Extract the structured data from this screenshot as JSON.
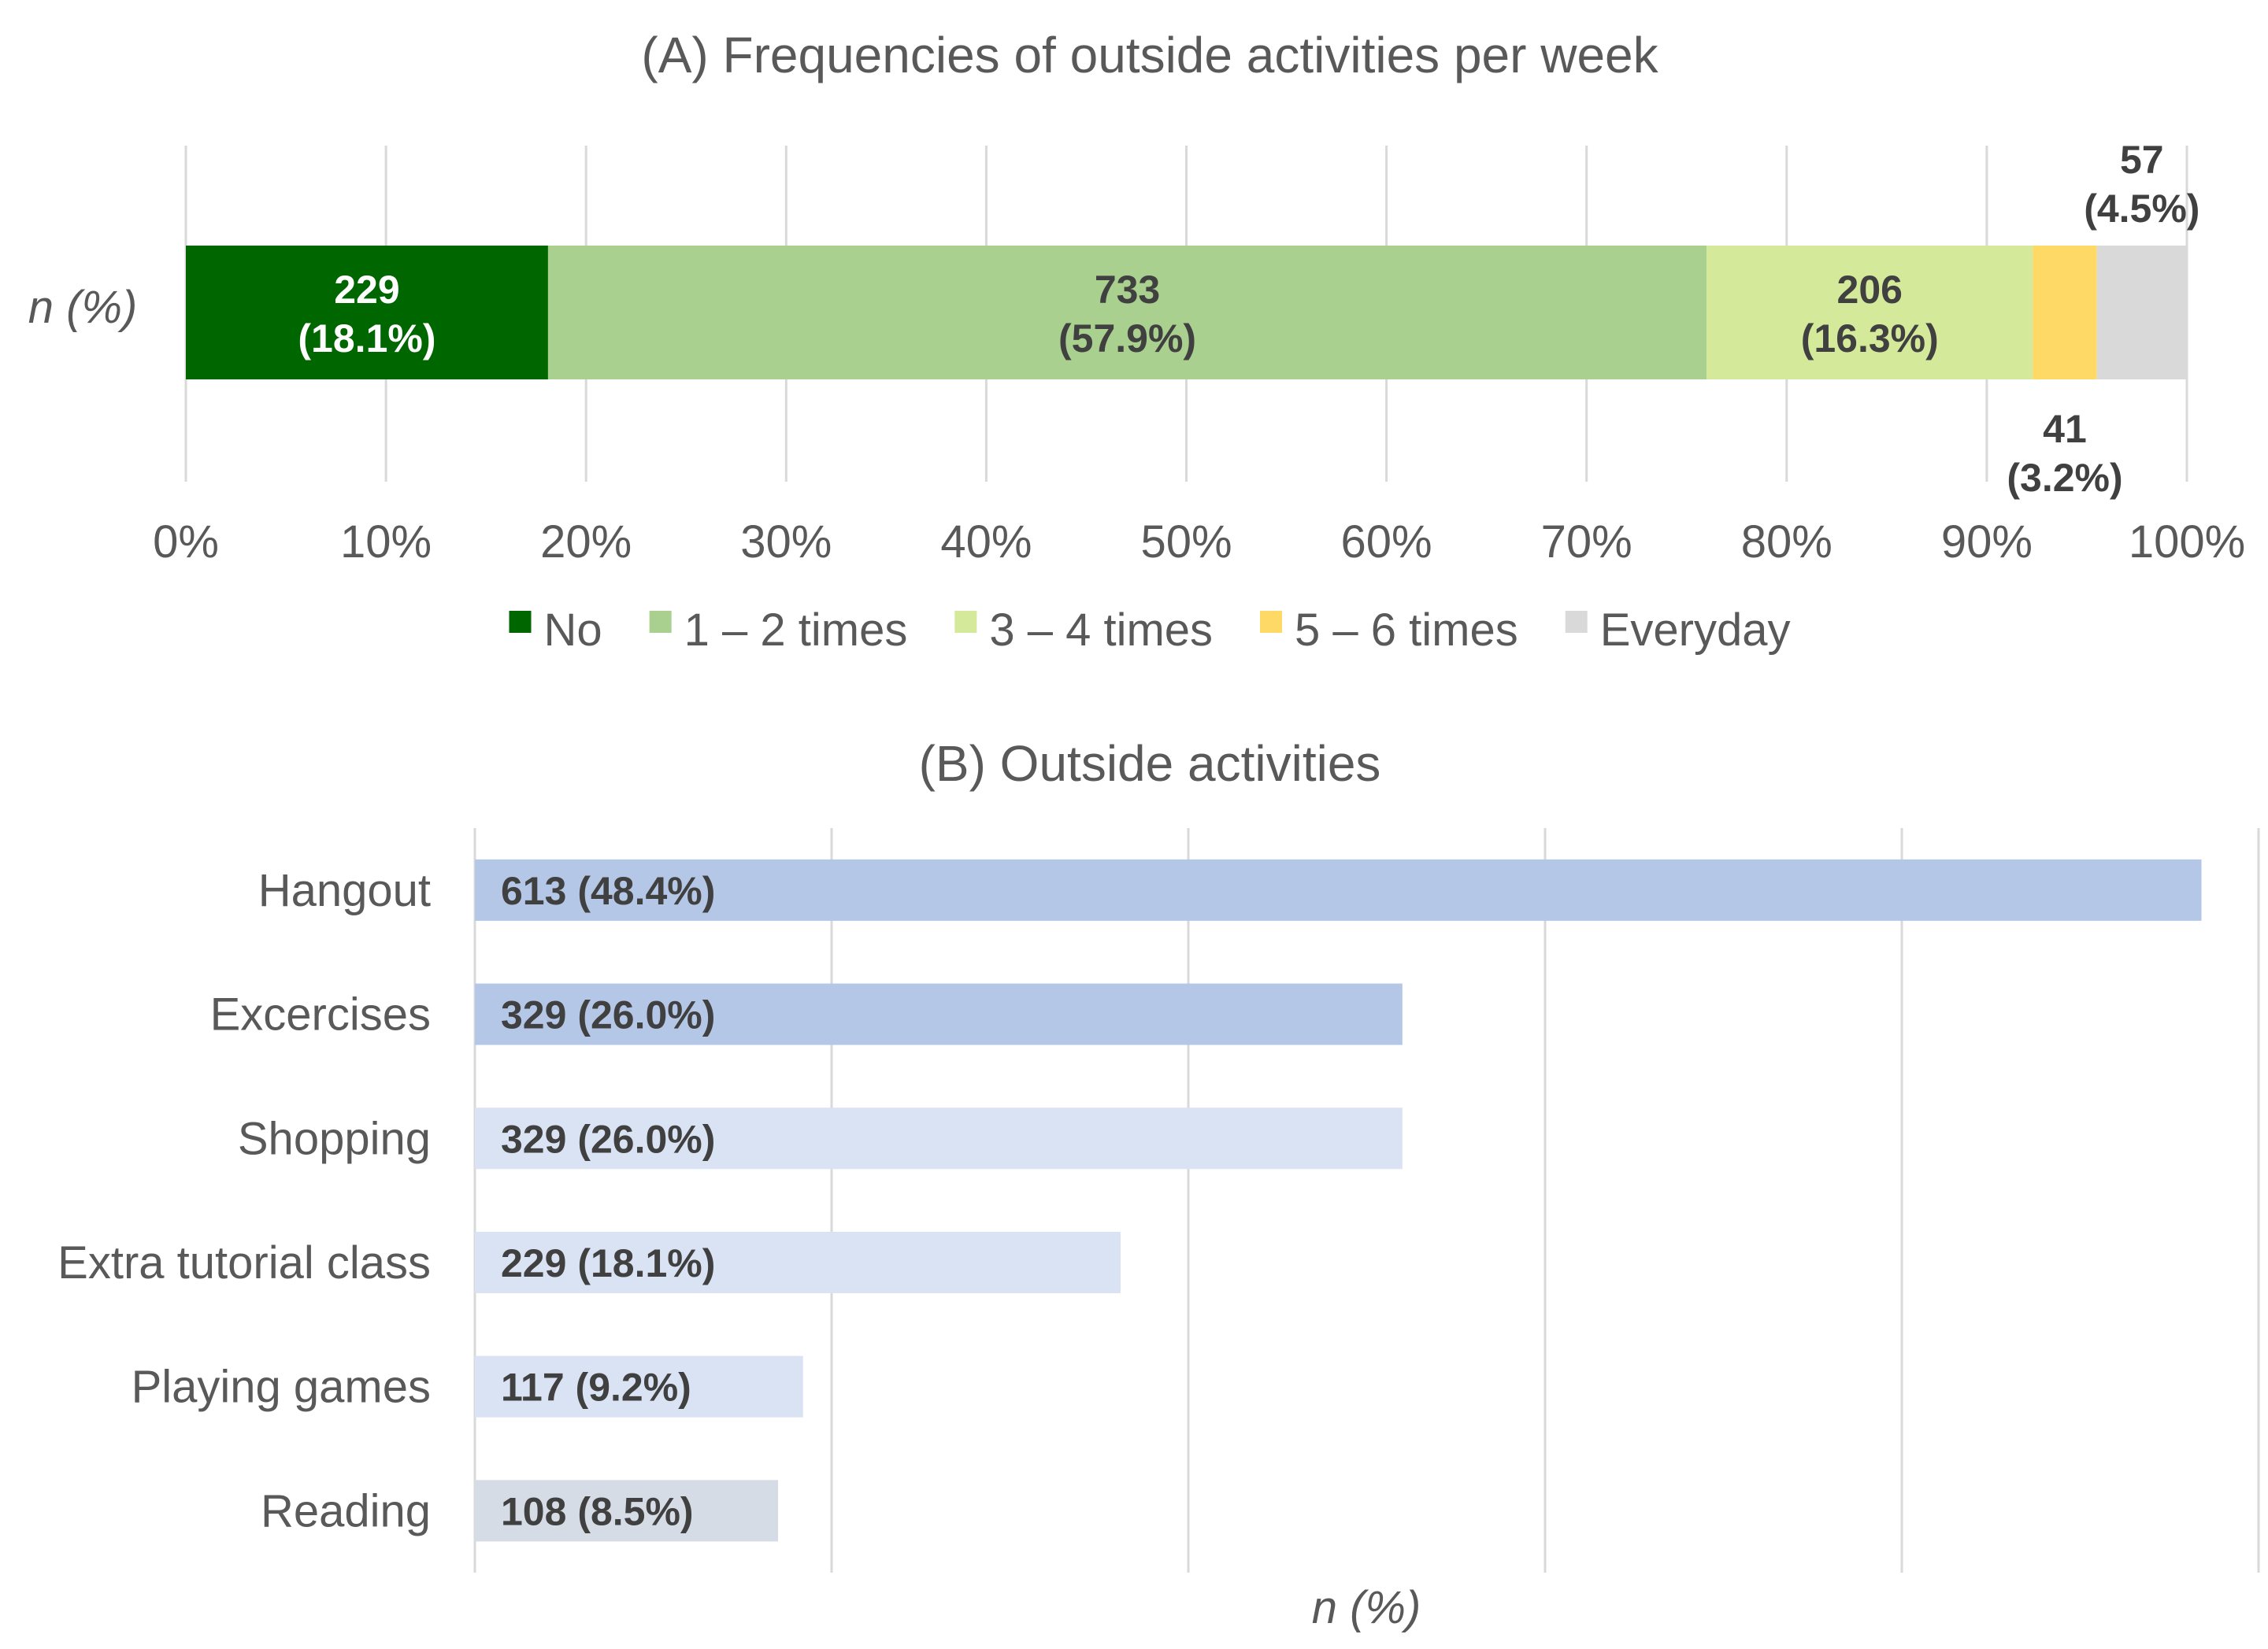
{
  "chart_data": [
    {
      "id": "A",
      "type": "bar",
      "orientation": "horizontal-stacked-percent",
      "title": "(A) Frequencies of outside activities per week",
      "ylabel": "n (%)",
      "xlabel": "",
      "xlim": [
        0,
        100
      ],
      "xticks": [
        "0%",
        "10%",
        "20%",
        "30%",
        "40%",
        "50%",
        "60%",
        "70%",
        "80%",
        "90%",
        "100%"
      ],
      "grid": true,
      "legend_position": "bottom",
      "series": [
        {
          "name": "No",
          "count": "229",
          "pct": 18.1,
          "label_pct": "(18.1%)",
          "color": "#006600",
          "label_color": "#ffffff",
          "label_placement": "inside"
        },
        {
          "name": "1 – 2 times",
          "count": "733",
          "pct": 57.9,
          "label_pct": "(57.9%)",
          "color": "#a9d08e",
          "label_color": "#404040",
          "label_placement": "inside"
        },
        {
          "name": "3 – 4 times",
          "count": "206",
          "pct": 16.3,
          "label_pct": "(16.3%)",
          "color": "#d5e99a",
          "label_color": "#404040",
          "label_placement": "inside"
        },
        {
          "name": "5 – 6 times",
          "count": "41",
          "pct": 3.2,
          "label_pct": "(3.2%)",
          "color": "#ffd966",
          "label_color": "#404040",
          "label_placement": "below"
        },
        {
          "name": "Everyday",
          "count": "57",
          "pct": 4.5,
          "label_pct": "(4.5%)",
          "color": "#d9d9d9",
          "label_color": "#404040",
          "label_placement": "above"
        }
      ]
    },
    {
      "id": "B",
      "type": "bar",
      "orientation": "horizontal",
      "title": "(B) Outside activities",
      "xlabel": "n (%)",
      "ylabel": "",
      "xlim": [
        0,
        50
      ],
      "grid": true,
      "categories": [
        "Hangout",
        "Excercises",
        "Shopping",
        "Extra tutorial class",
        "Playing games",
        "Reading"
      ],
      "values": [
        48.4,
        26.0,
        26.0,
        18.1,
        9.2,
        8.5
      ],
      "labels": [
        "613 (48.4%)",
        "329 (26.0%)",
        "329 (26.0%)",
        "229 (18.1%)",
        "117 (9.2%)",
        "108 (8.5%)"
      ],
      "colors": [
        "#b4c7e7",
        "#b4c7e7",
        "#dae3f3",
        "#dae3f3",
        "#dae3f3",
        "#d6dce5"
      ],
      "label_color": "#404040"
    }
  ]
}
